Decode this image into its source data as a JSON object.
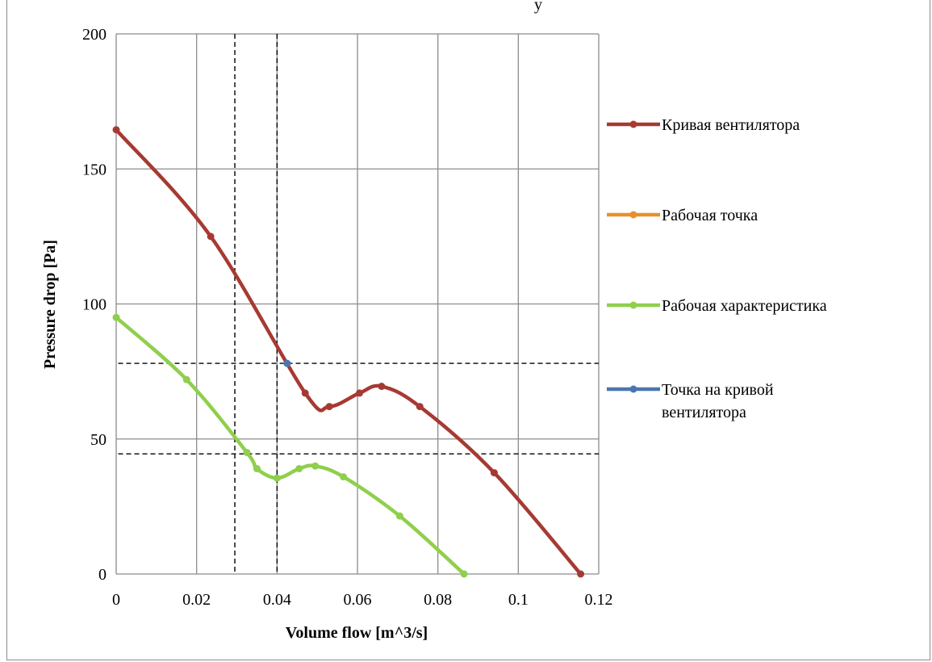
{
  "chart_data": {
    "type": "line",
    "title": "",
    "xlabel": "Volume flow [m^3/s]",
    "ylabel": "Pressure drop [Pa]",
    "xlim": [
      0,
      0.12
    ],
    "ylim": [
      0,
      200
    ],
    "x_ticks": [
      "0",
      "0.02",
      "0.04",
      "0.06",
      "0.08",
      "0.1",
      "0.12"
    ],
    "y_ticks": [
      "0",
      "50",
      "100",
      "150",
      "200"
    ],
    "grid": true,
    "legend_position": "right",
    "series": [
      {
        "name": "Кривая вентилятора",
        "color": "#a63a32",
        "x": [
          0,
          0.0235,
          0.047,
          0.053,
          0.0605,
          0.066,
          0.0755,
          0.094,
          0.1155
        ],
        "y": [
          164.5,
          125,
          67,
          62,
          67,
          69.5,
          62,
          37.5,
          0
        ]
      },
      {
        "name": "Рабочая точка",
        "color": "#e8902e",
        "x": [],
        "y": []
      },
      {
        "name": "Рабочая характеристика",
        "color": "#8fcf4c",
        "x": [
          0,
          0.0175,
          0.0325,
          0.035,
          0.04,
          0.0455,
          0.0495,
          0.0565,
          0.0705,
          0.0865
        ],
        "y": [
          95,
          72,
          45,
          39,
          35.5,
          39,
          40,
          36,
          21.5,
          0
        ]
      },
      {
        "name": "Точка на кривой вентилятора",
        "color": "#4a76b0",
        "x": [
          0.0425
        ],
        "y": [
          78
        ]
      }
    ],
    "reference_lines": [
      {
        "orientation": "vertical",
        "x": 0.0295,
        "style": "dashed"
      },
      {
        "orientation": "vertical",
        "x": 0.04,
        "style": "dashed"
      },
      {
        "orientation": "horizontal",
        "y": 78,
        "x_range": [
          0.0005,
          0.12
        ],
        "style": "dashed"
      },
      {
        "orientation": "horizontal",
        "y": 44.5,
        "x_range": [
          0.0005,
          0.12
        ],
        "style": "dashed"
      }
    ],
    "partial_title_text": "y"
  }
}
